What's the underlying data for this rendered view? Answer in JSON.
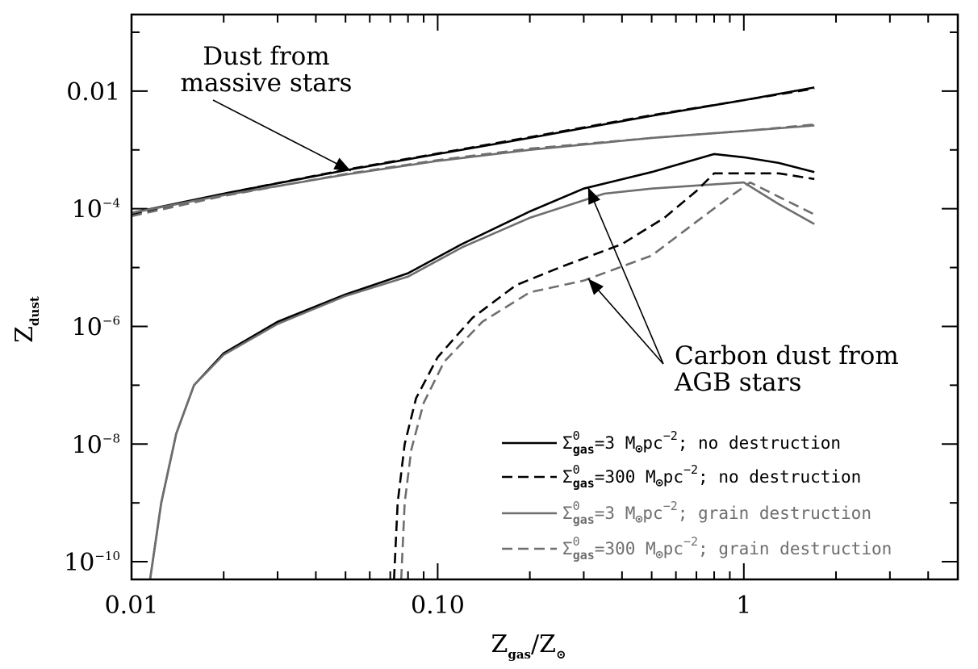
{
  "chart_data": {
    "type": "line",
    "xlabel": {
      "main": "Z",
      "sub1": "gas",
      "mid": "/Z",
      "sub2": "⊙"
    },
    "ylabel": {
      "main": "Z",
      "sub": "dust"
    },
    "xscale": "log",
    "yscale": "log",
    "xlim": [
      0.01,
      5
    ],
    "ylim": [
      5e-11,
      0.2
    ],
    "x_tick_labels": [
      {
        "value": 0.01,
        "label": "0.01"
      },
      {
        "value": 0.1,
        "label": "0.10"
      },
      {
        "value": 1,
        "label": "1"
      }
    ],
    "y_tick_labels": [
      {
        "value": 0.01,
        "label": "0.01",
        "exp": ""
      },
      {
        "value": 0.0001,
        "label": "10",
        "exp": "−4"
      },
      {
        "value": 1e-06,
        "label": "10",
        "exp": "−6"
      },
      {
        "value": 1e-08,
        "label": "10",
        "exp": "−8"
      },
      {
        "value": 1e-10,
        "label": "10",
        "exp": "−10"
      }
    ],
    "colors": {
      "black": "#000000",
      "gray": "#6e6e6e"
    },
    "series": [
      {
        "group": "massive-stars",
        "color": "black",
        "dash": "solid",
        "points": [
          [
            0.01,
            8.5e-05
          ],
          [
            0.02,
            0.00018
          ],
          [
            0.05,
            0.00045
          ],
          [
            0.1,
            0.00085
          ],
          [
            0.2,
            0.0016
          ],
          [
            0.5,
            0.0038
          ],
          [
            1.0,
            0.007
          ],
          [
            1.7,
            0.0115
          ]
        ]
      },
      {
        "group": "massive-stars",
        "color": "black",
        "dash": "dashed",
        "points": [
          [
            0.01,
            8e-05
          ],
          [
            0.02,
            0.00018
          ],
          [
            0.05,
            0.00046
          ],
          [
            0.1,
            0.00087
          ],
          [
            0.2,
            0.00165
          ],
          [
            0.5,
            0.0039
          ],
          [
            1.0,
            0.007
          ],
          [
            1.7,
            0.011
          ]
        ]
      },
      {
        "group": "massive-stars",
        "color": "gray",
        "dash": "solid",
        "points": [
          [
            0.01,
            8.5e-05
          ],
          [
            0.02,
            0.00017
          ],
          [
            0.05,
            0.00038
          ],
          [
            0.1,
            0.00065
          ],
          [
            0.2,
            0.001
          ],
          [
            0.5,
            0.0016
          ],
          [
            1.0,
            0.0021
          ],
          [
            1.7,
            0.0026
          ]
        ]
      },
      {
        "group": "massive-stars",
        "color": "gray",
        "dash": "dashed",
        "points": [
          [
            0.01,
            7.5e-05
          ],
          [
            0.02,
            0.000165
          ],
          [
            0.05,
            0.00039
          ],
          [
            0.1,
            0.00067
          ],
          [
            0.2,
            0.00105
          ],
          [
            0.5,
            0.0016
          ],
          [
            1.0,
            0.0021
          ],
          [
            1.7,
            0.0027
          ]
        ]
      },
      {
        "group": "agb",
        "color": "black",
        "dash": "solid",
        "points": [
          [
            0.0115,
            5e-11
          ],
          [
            0.0125,
            1e-09
          ],
          [
            0.014,
            1.5e-08
          ],
          [
            0.016,
            1e-07
          ],
          [
            0.02,
            3.5e-07
          ],
          [
            0.03,
            1.2e-06
          ],
          [
            0.05,
            3.5e-06
          ],
          [
            0.08,
            8e-06
          ],
          [
            0.12,
            2.5e-05
          ],
          [
            0.2,
            9e-05
          ],
          [
            0.3,
            0.00022
          ],
          [
            0.5,
            0.00042
          ],
          [
            0.8,
            0.00085
          ],
          [
            1.0,
            0.00075
          ],
          [
            1.3,
            0.0006
          ],
          [
            1.7,
            0.00042
          ]
        ]
      },
      {
        "group": "agb",
        "color": "gray",
        "dash": "solid",
        "points": [
          [
            0.0115,
            5e-11
          ],
          [
            0.0125,
            1e-09
          ],
          [
            0.014,
            1.5e-08
          ],
          [
            0.016,
            1e-07
          ],
          [
            0.02,
            3.3e-07
          ],
          [
            0.03,
            1.1e-06
          ],
          [
            0.05,
            3.3e-06
          ],
          [
            0.08,
            7e-06
          ],
          [
            0.12,
            2.2e-05
          ],
          [
            0.2,
            7e-05
          ],
          [
            0.35,
            0.00018
          ],
          [
            0.5,
            0.00022
          ],
          [
            0.8,
            0.00026
          ],
          [
            1.0,
            0.00028
          ],
          [
            1.3,
            0.00012
          ],
          [
            1.7,
            5.5e-05
          ]
        ]
      },
      {
        "group": "agb",
        "color": "black",
        "dash": "dashed",
        "points": [
          [
            0.072,
            5e-11
          ],
          [
            0.074,
            1e-09
          ],
          [
            0.078,
            1e-08
          ],
          [
            0.085,
            6e-08
          ],
          [
            0.1,
            3e-07
          ],
          [
            0.13,
            1.4e-06
          ],
          [
            0.18,
            5e-06
          ],
          [
            0.25,
            1e-05
          ],
          [
            0.4,
            2.5e-05
          ],
          [
            0.55,
            7e-05
          ],
          [
            0.7,
            0.0002
          ],
          [
            0.8,
            0.0004
          ],
          [
            1.0,
            0.0004
          ],
          [
            1.3,
            0.0004
          ],
          [
            1.7,
            0.00032
          ]
        ]
      },
      {
        "group": "agb",
        "color": "gray",
        "dash": "dashed",
        "points": [
          [
            0.076,
            5e-11
          ],
          [
            0.078,
            1e-09
          ],
          [
            0.082,
            8e-09
          ],
          [
            0.09,
            5e-08
          ],
          [
            0.105,
            2.5e-07
          ],
          [
            0.14,
            1.2e-06
          ],
          [
            0.2,
            3.8e-06
          ],
          [
            0.3,
            6e-06
          ],
          [
            0.5,
            1.6e-05
          ],
          [
            0.7,
            6e-05
          ],
          [
            0.9,
            0.00016
          ],
          [
            1.05,
            0.00028
          ],
          [
            1.3,
            0.00016
          ],
          [
            1.7,
            8e-05
          ]
        ]
      }
    ],
    "legend": {
      "placement": "bottom-right",
      "entries": [
        {
          "color": "black",
          "dash": "solid",
          "symbol": "Σ",
          "sup": "0",
          "sub": "gas",
          "value": "=3 M",
          "sun": "⊙",
          "unit": "pc",
          "exp": "−2",
          "tail": "; no destruction"
        },
        {
          "color": "black",
          "dash": "dashed",
          "symbol": "Σ",
          "sup": "0",
          "sub": "gas",
          "value": "=300 M",
          "sun": "⊙",
          "unit": "pc",
          "exp": "−2",
          "tail": "; no destruction"
        },
        {
          "color": "gray",
          "dash": "solid",
          "symbol": "Σ",
          "sup": "0",
          "sub": "gas",
          "value": "=3 M",
          "sun": "⊙",
          "unit": "pc",
          "exp": "−2",
          "tail": "; grain destruction"
        },
        {
          "color": "gray",
          "dash": "dashed",
          "symbol": "Σ",
          "sup": "0",
          "sub": "gas",
          "value": "=300 M",
          "sun": "⊙",
          "unit": "pc",
          "exp": "−2",
          "tail": "; grain destruction"
        }
      ]
    },
    "annotations": [
      {
        "lines": [
          "Dust from",
          "massive stars"
        ],
        "arrow_targets": [
          [
            0.052,
            0.00044
          ]
        ]
      },
      {
        "lines": [
          "Carbon dust from",
          "AGB stars"
        ],
        "arrow_targets": [
          [
            0.31,
            0.00023
          ],
          [
            0.31,
            6.5e-06
          ]
        ]
      }
    ]
  }
}
